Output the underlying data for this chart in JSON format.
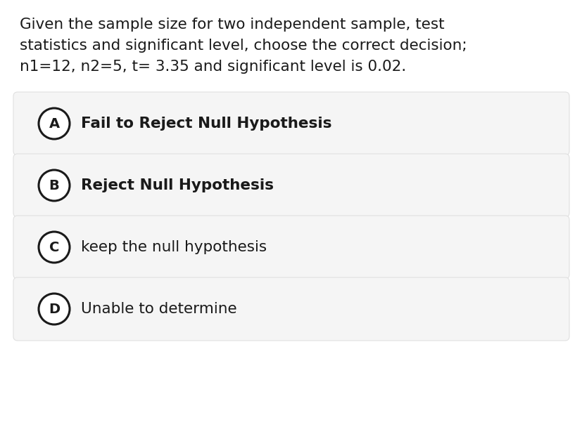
{
  "background_color": "#ffffff",
  "question_lines": [
    "Given the sample size for two independent sample, test",
    "statistics and significant level, choose the correct decision;",
    "n1=12, n2=5, t= 3.35 and significant level is 0.02."
  ],
  "question_fontsize": 15.5,
  "options": [
    {
      "label": "A",
      "text": "Fail to Reject Null Hypothesis",
      "bold": true
    },
    {
      "label": "B",
      "text": "Reject Null Hypothesis",
      "bold": true
    },
    {
      "label": "C",
      "text": "keep the null hypothesis",
      "bold": false
    },
    {
      "label": "D",
      "text": "Unable to determine",
      "bold": false
    }
  ],
  "option_box_color": "#f5f5f5",
  "option_box_edge_color": "#e0e0e0",
  "option_text_color": "#1a1a1a",
  "circle_edge_color": "#1a1a1a",
  "circle_face_color": "#ffffff",
  "option_fontsize": 15.5,
  "label_fontsize": 14.0,
  "fig_width": 8.28,
  "fig_height": 6.08,
  "dpi": 100
}
